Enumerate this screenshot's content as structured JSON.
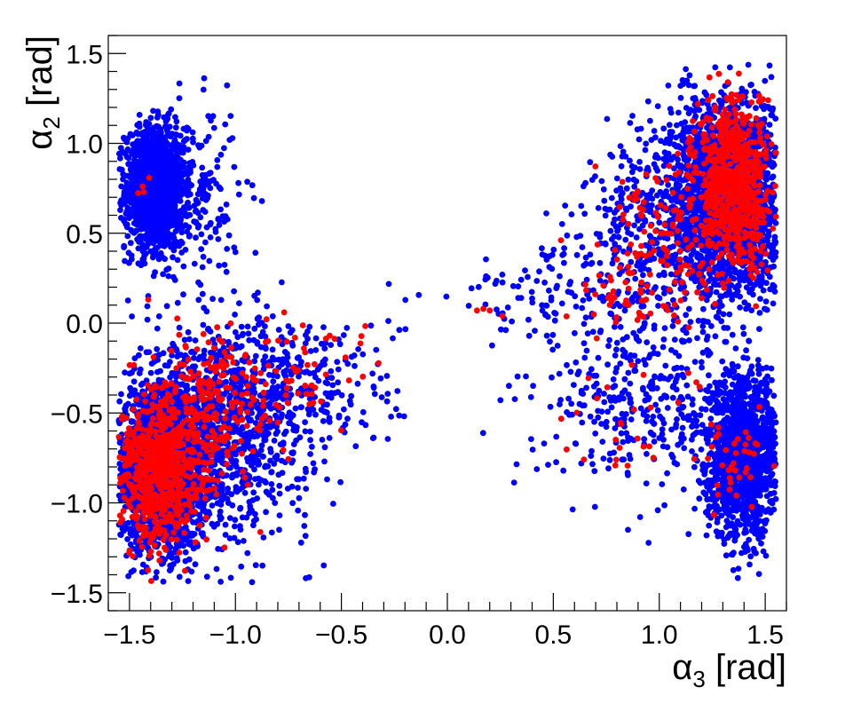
{
  "chart_data": {
    "type": "scatter",
    "title": "",
    "xlabel": {
      "symbol": "α",
      "subscript": "3",
      "unit": " [rad]"
    },
    "ylabel": {
      "symbol": "α",
      "subscript": "2",
      "unit": " [rad]"
    },
    "xlim": [
      -1.6,
      1.6
    ],
    "ylim": [
      -1.6,
      1.6
    ],
    "x_ticks": [
      -1.5,
      -1.0,
      -0.5,
      0.0,
      0.5,
      1.0,
      1.5
    ],
    "x_tick_labels": [
      "−1.5",
      "−1.0",
      "−0.5",
      "0.0",
      "0.5",
      "1.0",
      "1.5"
    ],
    "y_ticks": [
      -1.5,
      -1.0,
      -0.5,
      0.0,
      0.5,
      1.0,
      1.5
    ],
    "y_tick_labels": [
      "−1.5",
      "−1.0",
      "−0.5",
      "0.0",
      "0.5",
      "1.0",
      "1.5"
    ],
    "grid": false,
    "legend": "none",
    "series": [
      {
        "color": "#0000ff",
        "clusters": [
          {
            "x_center": -1.38,
            "y_center": 0.75,
            "x_spread": 0.07,
            "y_spread": 0.17,
            "count": 1400
          },
          {
            "x_center": -1.22,
            "y_center": 0.7,
            "x_spread": 0.12,
            "y_spread": 0.25,
            "count": 250
          },
          {
            "x_center": -1.35,
            "y_center": -0.8,
            "x_spread": 0.11,
            "y_spread": 0.22,
            "count": 2200
          },
          {
            "x_center": -1.05,
            "y_center": -0.6,
            "x_spread": 0.2,
            "y_spread": 0.3,
            "count": 900
          },
          {
            "x_center": -0.7,
            "y_center": -0.35,
            "x_spread": 0.25,
            "y_spread": 0.22,
            "count": 250
          },
          {
            "x_center": 1.33,
            "y_center": 0.7,
            "x_spread": 0.14,
            "y_spread": 0.28,
            "count": 2200
          },
          {
            "x_center": 1.0,
            "y_center": 0.5,
            "x_spread": 0.2,
            "y_spread": 0.3,
            "count": 400
          },
          {
            "x_center": 0.55,
            "y_center": 0.15,
            "x_spread": 0.25,
            "y_spread": 0.15,
            "count": 120
          },
          {
            "x_center": 1.4,
            "y_center": -0.75,
            "x_spread": 0.09,
            "y_spread": 0.22,
            "count": 1400
          },
          {
            "x_center": 0.95,
            "y_center": -0.45,
            "x_spread": 0.25,
            "y_spread": 0.25,
            "count": 350
          }
        ]
      },
      {
        "color": "#ff0000",
        "clusters": [
          {
            "x_center": -1.36,
            "y_center": -0.82,
            "x_spread": 0.09,
            "y_spread": 0.2,
            "count": 700
          },
          {
            "x_center": -1.12,
            "y_center": -0.5,
            "x_spread": 0.15,
            "y_spread": 0.22,
            "count": 250
          },
          {
            "x_center": -0.75,
            "y_center": -0.3,
            "x_spread": 0.15,
            "y_spread": 0.12,
            "count": 60
          },
          {
            "x_center": 1.35,
            "y_center": 0.78,
            "x_spread": 0.09,
            "y_spread": 0.22,
            "count": 700
          },
          {
            "x_center": 1.05,
            "y_center": 0.45,
            "x_spread": 0.18,
            "y_spread": 0.25,
            "count": 150
          },
          {
            "x_center": 0.8,
            "y_center": 0.15,
            "x_spread": 0.12,
            "y_spread": 0.08,
            "count": 30
          },
          {
            "x_center": 1.35,
            "y_center": -0.75,
            "x_spread": 0.08,
            "y_spread": 0.15,
            "count": 40
          },
          {
            "x_center": 0.85,
            "y_center": -0.5,
            "x_spread": 0.15,
            "y_spread": 0.15,
            "count": 25
          },
          {
            "x_center": -1.42,
            "y_center": 0.78,
            "x_spread": 0.04,
            "y_spread": 0.04,
            "count": 4
          }
        ],
        "points": [
          [
            0.14,
            0.07
          ],
          [
            0.17,
            0.08
          ],
          [
            0.2,
            0.07
          ],
          [
            0.26,
            0.04
          ]
        ]
      }
    ]
  }
}
